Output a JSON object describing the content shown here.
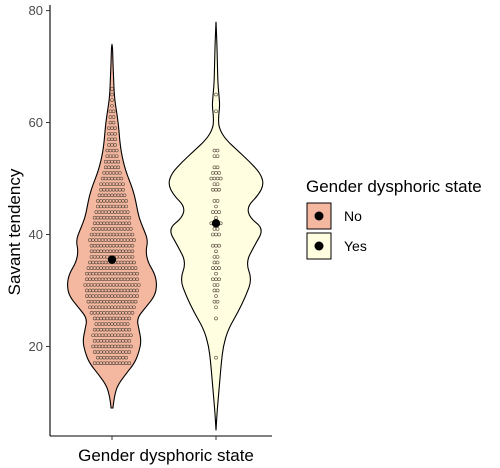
{
  "chart_data": {
    "type": "violin",
    "title": "",
    "xlabel": "Gender dysphoric state",
    "ylabel": "Savant tendency",
    "ylim": [
      4,
      81
    ],
    "yticks": [
      20,
      40,
      60,
      80
    ],
    "grid": false,
    "legend": {
      "title": "Gender dysphoric state",
      "placement": "right",
      "entries": [
        "No",
        "Yes"
      ]
    },
    "groups": [
      {
        "name": "No",
        "fill": "#f4b8a0",
        "dot_fill": "#f4b8a0",
        "mean": 35.5,
        "min": 9,
        "max": 74,
        "profile": [
          [
            9,
            0.02
          ],
          [
            11,
            0.05
          ],
          [
            13,
            0.12
          ],
          [
            15,
            0.3
          ],
          [
            17,
            0.5
          ],
          [
            19,
            0.6
          ],
          [
            21,
            0.65
          ],
          [
            23,
            0.6
          ],
          [
            25,
            0.55
          ],
          [
            27,
            0.75
          ],
          [
            29,
            0.95
          ],
          [
            31,
            1.0
          ],
          [
            33,
            0.95
          ],
          [
            35,
            0.8
          ],
          [
            37,
            0.75
          ],
          [
            39,
            0.8
          ],
          [
            41,
            0.7
          ],
          [
            43,
            0.6
          ],
          [
            45,
            0.55
          ],
          [
            47,
            0.5
          ],
          [
            49,
            0.42
          ],
          [
            51,
            0.32
          ],
          [
            53,
            0.25
          ],
          [
            55,
            0.2
          ],
          [
            57,
            0.17
          ],
          [
            59,
            0.15
          ],
          [
            61,
            0.12
          ],
          [
            63,
            0.08
          ],
          [
            65,
            0.05
          ],
          [
            68,
            0.035
          ],
          [
            71,
            0.02
          ],
          [
            74,
            0.01
          ]
        ],
        "dot_rows": [
          [
            17,
            12
          ],
          [
            18,
            10
          ],
          [
            19,
            12
          ],
          [
            20,
            13
          ],
          [
            21,
            12
          ],
          [
            22,
            13
          ],
          [
            23,
            12
          ],
          [
            24,
            11
          ],
          [
            25,
            12
          ],
          [
            26,
            14
          ],
          [
            27,
            15
          ],
          [
            28,
            16
          ],
          [
            29,
            17
          ],
          [
            30,
            17
          ],
          [
            31,
            18
          ],
          [
            32,
            17
          ],
          [
            33,
            17
          ],
          [
            34,
            16
          ],
          [
            35,
            15
          ],
          [
            36,
            14
          ],
          [
            37,
            14
          ],
          [
            38,
            14
          ],
          [
            39,
            15
          ],
          [
            40,
            14
          ],
          [
            41,
            13
          ],
          [
            42,
            12
          ],
          [
            43,
            12
          ],
          [
            44,
            11
          ],
          [
            45,
            10
          ],
          [
            46,
            10
          ],
          [
            47,
            9
          ],
          [
            48,
            8
          ],
          [
            49,
            8
          ],
          [
            50,
            7
          ],
          [
            51,
            6
          ],
          [
            52,
            5
          ],
          [
            53,
            5
          ],
          [
            54,
            4
          ],
          [
            55,
            4
          ],
          [
            56,
            3
          ],
          [
            57,
            3
          ],
          [
            58,
            3
          ],
          [
            59,
            3
          ],
          [
            60,
            2
          ],
          [
            61,
            2
          ],
          [
            62,
            2
          ],
          [
            63,
            1
          ],
          [
            64,
            1
          ],
          [
            65,
            1
          ],
          [
            66,
            1
          ]
        ]
      },
      {
        "name": "Yes",
        "fill": "#fffee0",
        "dot_fill": "#fffee0",
        "mean": 42,
        "min": 5,
        "max": 78,
        "profile": [
          [
            5,
            0.0
          ],
          [
            8,
            0.02
          ],
          [
            11,
            0.05
          ],
          [
            14,
            0.08
          ],
          [
            17,
            0.11
          ],
          [
            20,
            0.15
          ],
          [
            23,
            0.25
          ],
          [
            26,
            0.45
          ],
          [
            29,
            0.62
          ],
          [
            32,
            0.75
          ],
          [
            35,
            0.62
          ],
          [
            38,
            0.8
          ],
          [
            41,
            1.0
          ],
          [
            43,
            0.7
          ],
          [
            45,
            0.65
          ],
          [
            47,
            0.88
          ],
          [
            49,
            1.0
          ],
          [
            51,
            0.92
          ],
          [
            53,
            0.7
          ],
          [
            55,
            0.45
          ],
          [
            57,
            0.2
          ],
          [
            59,
            0.06
          ],
          [
            61,
            0.05
          ],
          [
            63,
            0.08
          ],
          [
            65,
            0.06
          ],
          [
            67,
            0.04
          ],
          [
            70,
            0.03
          ],
          [
            74,
            0.02
          ],
          [
            78,
            0.0
          ]
        ],
        "dot_rows": [
          [
            18,
            1
          ],
          [
            25,
            1
          ],
          [
            27,
            1
          ],
          [
            28,
            2
          ],
          [
            29,
            1
          ],
          [
            30,
            2
          ],
          [
            31,
            2
          ],
          [
            32,
            3
          ],
          [
            33,
            1
          ],
          [
            34,
            3
          ],
          [
            35,
            2
          ],
          [
            36,
            2
          ],
          [
            37,
            1
          ],
          [
            38,
            3
          ],
          [
            40,
            3
          ],
          [
            41,
            2
          ],
          [
            42,
            4
          ],
          [
            43,
            1
          ],
          [
            44,
            3
          ],
          [
            45,
            1
          ],
          [
            46,
            2
          ],
          [
            48,
            3
          ],
          [
            49,
            2
          ],
          [
            50,
            4
          ],
          [
            51,
            3
          ],
          [
            52,
            2
          ],
          [
            54,
            2
          ],
          [
            55,
            2
          ],
          [
            62,
            1
          ],
          [
            65,
            1
          ]
        ]
      }
    ]
  }
}
